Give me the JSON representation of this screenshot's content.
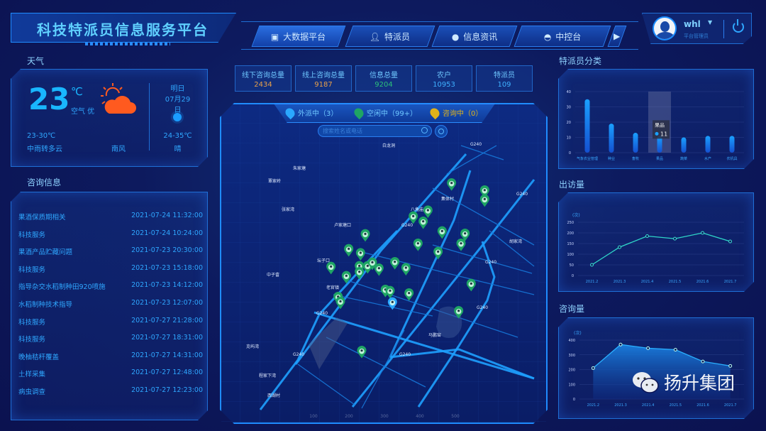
{
  "header": {
    "title": "科技特派员信息服务平台",
    "nav": [
      {
        "label": "大数据平台",
        "icon": "monitor-icon",
        "active": true
      },
      {
        "label": "特派员",
        "icon": "user-icon",
        "active": false
      },
      {
        "label": "信息资讯",
        "icon": "chat-icon",
        "active": false
      },
      {
        "label": "中控台",
        "icon": "dashboard-icon",
        "active": false
      }
    ],
    "user": {
      "name": "whl",
      "role": "平台管理员"
    }
  },
  "weather": {
    "section_label": "天气",
    "temp": "23",
    "unit": "℃",
    "air": "空气 优",
    "range": "23-30℃",
    "desc": "中雨转多云",
    "wind": "南风",
    "tomorrow": {
      "label": "明日",
      "date": "07月29日",
      "range": "24-35℃",
      "desc": "晴"
    },
    "icon": "sun-cloud-icon",
    "accent": "#ff5a1f"
  },
  "consult": {
    "section_label": "咨询信息",
    "items": [
      {
        "title": "果酒保质期相关",
        "time": "2021-07-24 11:32:00"
      },
      {
        "title": "科技服务",
        "time": "2021-07-24 10:24:00"
      },
      {
        "title": "果酒产品贮藏问题",
        "time": "2021-07-23 20:30:00"
      },
      {
        "title": "科技服务",
        "time": "2021-07-23 15:18:00"
      },
      {
        "title": "指导杂交水稻制种田920喷施",
        "time": "2021-07-23 14:12:00"
      },
      {
        "title": "水稻制种技术指导",
        "time": "2021-07-23 12:07:00"
      },
      {
        "title": "科技服务",
        "time": "2021-07-27 21:28:00"
      },
      {
        "title": "科技服务",
        "time": "2021-07-27 18:31:00"
      },
      {
        "title": "晚柚秸秆覆盖",
        "time": "2021-07-27 14:31:00"
      },
      {
        "title": "土样采集",
        "time": "2021-07-27 12:48:00"
      },
      {
        "title": "病虫调查",
        "time": "2021-07-27 12:23:00"
      }
    ]
  },
  "stats": [
    {
      "label": "线下咨询总量",
      "value": "2434",
      "color": "#e8a04a"
    },
    {
      "label": "线上咨询总量",
      "value": "9187",
      "color": "#e8a04a"
    },
    {
      "label": "信息总量",
      "value": "9204",
      "color": "#2cc07a"
    },
    {
      "label": "农户",
      "value": "10953",
      "color": "#3fb0ff"
    },
    {
      "label": "特派员",
      "value": "109",
      "color": "#3fb0ff"
    }
  ],
  "map": {
    "legend": [
      {
        "label": "外派中（3）",
        "color": "#2aa8ff"
      },
      {
        "label": "空闲中（99+）",
        "color": "#1fa564"
      },
      {
        "label": "咨询中（0）",
        "color": "#e0b21a"
      }
    ],
    "search_placeholder": "搜索姓名或电话",
    "labels": [
      "白龙洞",
      "朱家塘",
      "覃家岭",
      "张家湾",
      "卢家塘口",
      "八角庙",
      "集体村",
      "胡家湾",
      "坛子口",
      "中子畲",
      "老官镇",
      "马鹏窑",
      "克屿湾",
      "程家下湾",
      "西湖村",
      "G240",
      "G240",
      "G240",
      "G240",
      "G240",
      "G240",
      "G240",
      "G240"
    ],
    "ticks": [
      "100",
      "200",
      "300",
      "400",
      "500"
    ]
  },
  "right": {
    "category_label": "特派员分类",
    "visits_label": "出访量",
    "consults_label": "咨询量"
  },
  "chart_data": [
    {
      "type": "bar",
      "categories": [
        "气象农业管理",
        "种业",
        "畜牧",
        "果品",
        "蔬菜",
        "水产",
        "农机具"
      ],
      "values": [
        35,
        19,
        13,
        11,
        10,
        11,
        11
      ],
      "ylim": [
        0,
        40
      ],
      "yticks": [
        "0",
        "10",
        "20",
        "30",
        "40"
      ],
      "grid": true,
      "tooltip": {
        "category": "果品",
        "value": "11"
      },
      "color": "#1e8cff"
    },
    {
      "type": "line",
      "unit": "(次)",
      "categories": [
        "2021.2",
        "2021.3",
        "2021.4",
        "2021.5",
        "2021.6",
        "2021.7"
      ],
      "values": [
        50,
        133,
        185,
        173,
        200,
        160
      ],
      "ylim": [
        0,
        250
      ],
      "yticks": [
        "0",
        "50",
        "100",
        "150",
        "200",
        "250"
      ],
      "grid": true,
      "color": "#2fd6c8"
    },
    {
      "type": "area",
      "unit": "(次)",
      "categories": [
        "2021.2",
        "2021.3",
        "2021.4",
        "2021.5",
        "2021.6",
        "2021.7"
      ],
      "values": [
        210,
        370,
        345,
        335,
        255,
        225
      ],
      "ylim": [
        0,
        400
      ],
      "yticks": [
        "0",
        "100",
        "200",
        "300",
        "400"
      ],
      "grid": true,
      "color": "#1a8cff"
    }
  ],
  "watermark": {
    "text": "扬升集团"
  }
}
